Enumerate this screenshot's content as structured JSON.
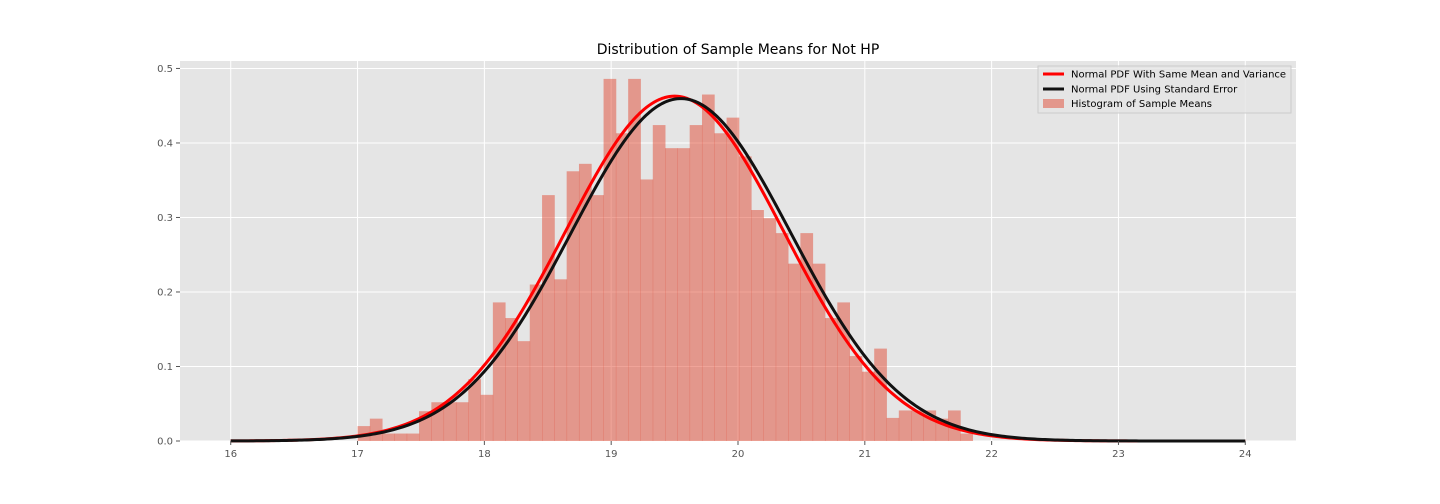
{
  "chart_data": {
    "type": "bar",
    "title": "Distribution of Sample Means for Not HP",
    "xlabel": "",
    "ylabel": "",
    "xlim": [
      15.6,
      24.4
    ],
    "ylim": [
      0,
      0.51
    ],
    "x_ticks": [
      16,
      17,
      18,
      19,
      20,
      21,
      22,
      23,
      24
    ],
    "y_ticks": [
      0.0,
      0.1,
      0.2,
      0.3,
      0.4,
      0.5
    ],
    "x_tick_labels": [
      "16",
      "17",
      "18",
      "19",
      "20",
      "21",
      "22",
      "23",
      "24"
    ],
    "y_tick_labels": [
      "0.0",
      "0.1",
      "0.2",
      "0.3",
      "0.4",
      "0.5"
    ],
    "grid": true,
    "legend_position": "top-right",
    "colors": {
      "background": "#e5e5e5",
      "grid": "#ffffff",
      "histogram": "#e24a33",
      "normal_same_mean_variance": "#ff0000",
      "normal_standard_error": "#111111"
    },
    "histogram": {
      "name": "Histogram of Sample Means",
      "bin_edges": [
        17.0,
        17.097,
        17.194,
        17.291,
        17.388,
        17.485,
        17.582,
        17.679,
        17.776,
        17.873,
        17.97,
        18.067,
        18.164,
        18.261,
        18.358,
        18.455,
        18.552,
        18.649,
        18.746,
        18.843,
        18.94,
        19.037,
        19.134,
        19.231,
        19.328,
        19.425,
        19.522,
        19.619,
        19.716,
        19.813,
        19.91,
        20.007,
        20.104,
        20.201,
        20.298,
        20.395,
        20.492,
        20.589,
        20.686,
        20.783,
        20.88,
        20.977,
        21.074,
        21.171,
        21.268,
        21.365,
        21.462,
        21.559,
        21.656,
        21.753,
        21.85
      ],
      "values": [
        0.02,
        0.03,
        0.01,
        0.01,
        0.01,
        0.04,
        0.052,
        0.052,
        0.052,
        0.083,
        0.062,
        0.186,
        0.165,
        0.134,
        0.21,
        0.33,
        0.217,
        0.362,
        0.372,
        0.33,
        0.486,
        0.413,
        0.486,
        0.351,
        0.424,
        0.393,
        0.393,
        0.424,
        0.465,
        0.413,
        0.434,
        0.382,
        0.31,
        0.299,
        0.279,
        0.238,
        0.279,
        0.238,
        0.165,
        0.186,
        0.114,
        0.093,
        0.124,
        0.031,
        0.041,
        0.041,
        0.041,
        0.03,
        0.041,
        0.01
      ]
    },
    "series": [
      {
        "name": "Normal PDF With Same Mean and Variance",
        "type": "line",
        "distribution": "normal",
        "mean": 19.5,
        "sd": 0.862,
        "x_range": [
          16,
          24
        ]
      },
      {
        "name": "Normal PDF Using Standard Error",
        "type": "line",
        "distribution": "normal",
        "mean": 19.55,
        "sd": 0.868,
        "x_range": [
          16,
          24
        ]
      }
    ]
  }
}
